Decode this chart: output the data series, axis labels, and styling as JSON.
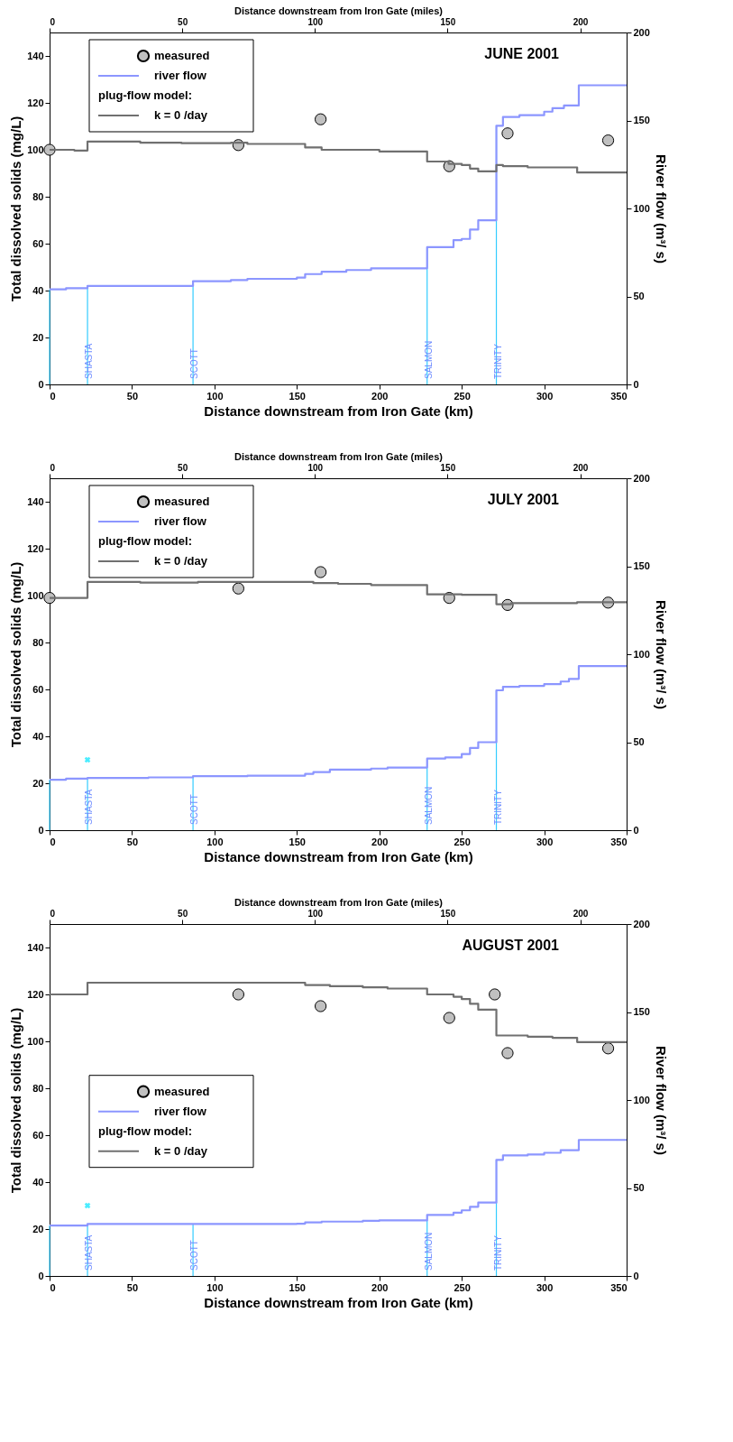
{
  "chart_data": [
    {
      "type": "step",
      "title": "JUNE 2001",
      "xlabel": "Distance downstream from Iron Gate (km)",
      "x2label": "Distance downstream from Iron Gate (miles)",
      "ylabel": "Total dissolved solids (mg/L)",
      "y2label": "River flow (m³/ s)",
      "legend_title": "plug-flow model:",
      "legend": "top left",
      "grid": false,
      "xlim": [
        0,
        350
      ],
      "xticks": [
        0,
        50,
        100,
        150,
        200,
        250,
        300,
        350
      ],
      "x2lim": [
        0,
        217.5
      ],
      "x2ticks": [
        0,
        50,
        100,
        150,
        200
      ],
      "ylim": [
        0,
        150
      ],
      "yticks": [
        0,
        20,
        40,
        60,
        80,
        100,
        120,
        140
      ],
      "y2lim": [
        0,
        200
      ],
      "y2ticks": [
        0,
        50,
        100,
        150,
        200
      ],
      "ref_lines": [
        {
          "axis": "x",
          "value": 0,
          "label": null,
          "color": "#33ccff"
        },
        {
          "axis": "x",
          "value": 23,
          "label": "SHASTA",
          "color": "#33ccff"
        },
        {
          "axis": "x",
          "value": 87,
          "label": "SCOTT",
          "color": "#33ccff"
        },
        {
          "axis": "x",
          "value": 229,
          "label": "SALMON",
          "color": "#33ccff"
        },
        {
          "axis": "x",
          "value": 271,
          "label": "TRINITY",
          "color": "#33ccff"
        }
      ],
      "series": [
        {
          "name": "measured",
          "type": "scatter",
          "marker": "circle",
          "color": "#c0c0c0",
          "x": [
            0,
            114.5,
            164.4,
            242.4,
            277.8,
            338.8
          ],
          "values": [
            100,
            102,
            113,
            93,
            107,
            104
          ]
        },
        {
          "name": "river flow",
          "axis": "y2",
          "color": "#8c96ff",
          "x": [
            0,
            10,
            23,
            87,
            110,
            120,
            150,
            155,
            165,
            180,
            195,
            229,
            245,
            250,
            255,
            260,
            271,
            275,
            285,
            300,
            305,
            312,
            321,
            350
          ],
          "values": [
            54,
            54.7,
            56,
            58.7,
            59.3,
            60,
            60.7,
            62.7,
            64,
            65,
            66,
            78,
            82,
            82.7,
            88,
            93.3,
            147,
            152,
            153,
            155,
            157,
            158.5,
            170,
            170
          ]
        },
        {
          "name": "k  =  0  /day",
          "color": "#707070",
          "x": [
            0,
            15,
            23,
            55,
            80,
            110,
            120,
            155,
            165,
            200,
            229,
            242,
            250,
            255,
            260,
            271,
            275,
            290,
            320,
            350
          ],
          "values": [
            100,
            99.7,
            103.5,
            103,
            102.8,
            103,
            102.5,
            101,
            100,
            99.3,
            95,
            94,
            93.5,
            92,
            90.8,
            93.5,
            93,
            92.5,
            90.3,
            90.3
          ]
        }
      ]
    },
    {
      "type": "step",
      "title": "JULY 2001",
      "xlabel": "Distance downstream from Iron Gate (km)",
      "x2label": "Distance downstream from Iron Gate (miles)",
      "ylabel": "Total dissolved solids (mg/L)",
      "y2label": "River flow (m³/ s)",
      "legend_title": "plug-flow model:",
      "legend": "top left",
      "grid": false,
      "xlim": [
        0,
        350
      ],
      "xticks": [
        0,
        50,
        100,
        150,
        200,
        250,
        300,
        350
      ],
      "x2lim": [
        0,
        217.5
      ],
      "x2ticks": [
        0,
        50,
        100,
        150,
        200
      ],
      "ylim": [
        0,
        150
      ],
      "yticks": [
        0,
        20,
        40,
        60,
        80,
        100,
        120,
        140
      ],
      "y2lim": [
        0,
        200
      ],
      "y2ticks": [
        0,
        50,
        100,
        150,
        200
      ],
      "ref_lines": [
        {
          "axis": "x",
          "value": 0,
          "label": null,
          "color": "#33ccff"
        },
        {
          "axis": "x",
          "value": 23,
          "label": "SHASTA",
          "color": "#33ccff"
        },
        {
          "axis": "x",
          "value": 87,
          "label": "SCOTT",
          "color": "#33ccff"
        },
        {
          "axis": "x",
          "value": 229,
          "label": "SALMON",
          "color": "#33ccff"
        },
        {
          "axis": "x",
          "value": 271,
          "label": "TRINITY",
          "color": "#33ccff"
        }
      ],
      "series": [
        {
          "name": "measured",
          "type": "scatter",
          "marker": "circle",
          "color": "#c0c0c0",
          "x": [
            0,
            114.5,
            164.4,
            242.4,
            277.8,
            338.8
          ],
          "values": [
            99,
            103,
            110,
            99,
            96,
            97
          ]
        },
        {
          "name": "river flow",
          "axis": "y2",
          "color": "#8c96ff",
          "x": [
            0,
            10,
            23,
            60,
            87,
            120,
            155,
            160,
            170,
            195,
            205,
            229,
            240,
            250,
            255,
            260,
            271,
            275,
            285,
            300,
            310,
            315,
            321,
            350
          ],
          "values": [
            28.7,
            29.3,
            29.7,
            30,
            30.7,
            31,
            32,
            33,
            34.4,
            35,
            35.6,
            40.7,
            41.3,
            43.3,
            46.7,
            50,
            79.5,
            81.5,
            82,
            83,
            84.5,
            86,
            93.3,
            93.3
          ]
        },
        {
          "name": "k  =  0  /day",
          "color": "#707070",
          "x": [
            0,
            23,
            55,
            90,
            160,
            175,
            195,
            229,
            250,
            271,
            280,
            320,
            350
          ],
          "values": [
            99,
            105.8,
            105.5,
            105.8,
            105.3,
            105,
            104.5,
            100.5,
            100.3,
            96.3,
            96.8,
            97.2,
            97.2
          ]
        },
        {
          "type": "scatter",
          "marker": "cross",
          "color": "#00e5ff",
          "x": [
            23
          ],
          "values": [
            30
          ]
        }
      ]
    },
    {
      "type": "step",
      "title": "AUGUST 2001",
      "xlabel": "Distance downstream from Iron Gate (km)",
      "x2label": "Distance downstream from Iron Gate (miles)",
      "ylabel": "Total dissolved solids (mg/L)",
      "y2label": "River flow (m³/ s)",
      "legend_title": "plug-flow model:",
      "legend": "left",
      "grid": false,
      "xlim": [
        0,
        350
      ],
      "xticks": [
        0,
        50,
        100,
        150,
        200,
        250,
        300,
        350
      ],
      "x2lim": [
        0,
        217.5
      ],
      "x2ticks": [
        0,
        50,
        100,
        150,
        200
      ],
      "ylim": [
        0,
        150
      ],
      "yticks": [
        0,
        20,
        40,
        60,
        80,
        100,
        120,
        140
      ],
      "y2lim": [
        0,
        200
      ],
      "y2ticks": [
        0,
        50,
        100,
        150,
        200
      ],
      "ref_lines": [
        {
          "axis": "x",
          "value": 0,
          "label": null,
          "color": "#33ccff"
        },
        {
          "axis": "x",
          "value": 23,
          "label": "SHASTA",
          "color": "#33ccff"
        },
        {
          "axis": "x",
          "value": 87,
          "label": "SCOTT",
          "color": "#33ccff"
        },
        {
          "axis": "x",
          "value": 229,
          "label": "SALMON",
          "color": "#33ccff"
        },
        {
          "axis": "x",
          "value": 271,
          "label": "TRINITY",
          "color": "#33ccff"
        }
      ],
      "series": [
        {
          "name": "measured",
          "type": "scatter",
          "marker": "circle",
          "color": "#c0c0c0",
          "x": [
            114.5,
            164.4,
            242.4,
            270,
            277.8,
            338.8
          ],
          "values": [
            120,
            115,
            110,
            120,
            95,
            97
          ]
        },
        {
          "name": "river flow",
          "axis": "y2",
          "color": "#8c96ff",
          "x": [
            0,
            23,
            150,
            155,
            165,
            190,
            200,
            229,
            245,
            250,
            255,
            260,
            271,
            275,
            290,
            300,
            310,
            321,
            350
          ],
          "values": [
            28.7,
            29.6,
            29.7,
            30.4,
            30.9,
            31.3,
            31.6,
            34.7,
            36,
            37.3,
            39.3,
            41.7,
            66,
            68.5,
            69,
            70,
            71.5,
            77.3,
            77.3
          ]
        },
        {
          "name": "k  =  0  /day",
          "color": "#707070",
          "x": [
            0,
            23,
            150,
            155,
            170,
            190,
            205,
            229,
            245,
            250,
            255,
            260,
            271,
            290,
            305,
            320,
            350
          ],
          "values": [
            120,
            125,
            125,
            124,
            123.5,
            123,
            122.5,
            120,
            119,
            118,
            116,
            113.5,
            102.5,
            102,
            101.5,
            99.7,
            99.7
          ]
        },
        {
          "type": "scatter",
          "marker": "cross",
          "color": "#00e5ff",
          "x": [
            23
          ],
          "values": [
            30
          ]
        }
      ]
    }
  ]
}
